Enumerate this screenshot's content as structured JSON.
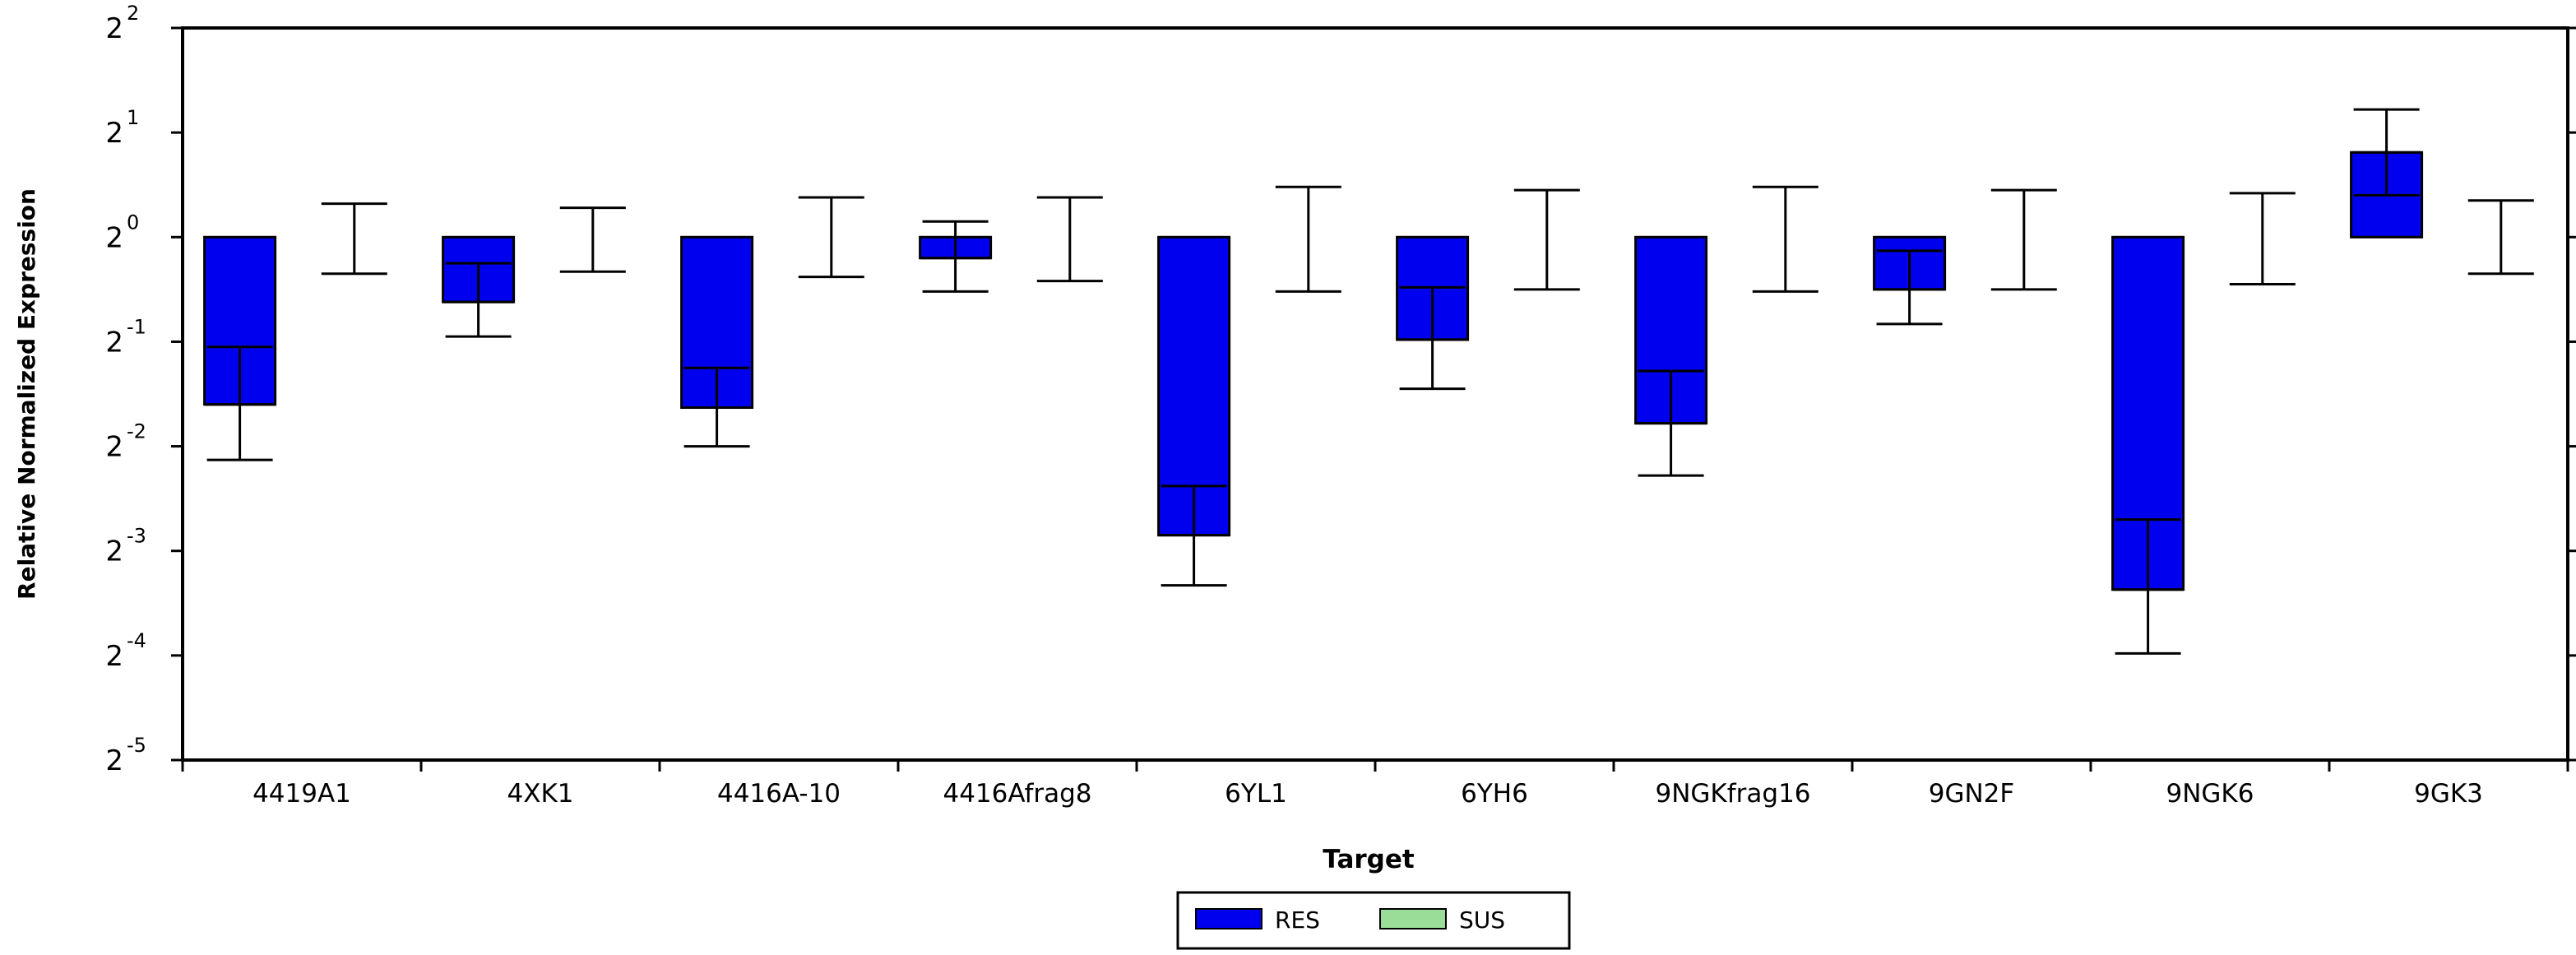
{
  "chart_data": {
    "type": "bar",
    "xlabel": "Target",
    "ylabel": "Relative Normalized Expression",
    "y_scale": "log2",
    "ylim": [
      -5,
      2
    ],
    "y_ticks": [
      {
        "base": "2",
        "exp": "2",
        "value": 2
      },
      {
        "base": "2",
        "exp": "1",
        "value": 1
      },
      {
        "base": "2",
        "exp": "0",
        "value": 0
      },
      {
        "base": "2",
        "exp": "-1",
        "value": -1
      },
      {
        "base": "2",
        "exp": "-2",
        "value": -2
      },
      {
        "base": "2",
        "exp": "-3",
        "value": -3
      },
      {
        "base": "2",
        "exp": "-4",
        "value": -4
      },
      {
        "base": "2",
        "exp": "-5",
        "value": -5
      }
    ],
    "categories": [
      "4419A1",
      "4XK1",
      "4416A-10",
      "4416Afrag8",
      "6YL1",
      "6YH6",
      "9NGKfrag16",
      "9GN2F",
      "9NGK6",
      "9GK3"
    ],
    "series": [
      {
        "name": "RES",
        "color": "#0000ee",
        "values_log2": [
          -1.6,
          -0.62,
          -1.63,
          -0.2,
          -2.85,
          -0.98,
          -1.78,
          -0.5,
          -3.37,
          0.81
        ],
        "error_low_log2": [
          -2.13,
          -0.95,
          -2.0,
          -0.52,
          -3.33,
          -1.45,
          -2.28,
          -0.83,
          -3.98,
          0.4
        ],
        "error_high_log2": [
          -1.05,
          -0.25,
          -1.25,
          0.15,
          -2.38,
          -0.48,
          -1.28,
          -0.13,
          -2.7,
          1.22
        ]
      },
      {
        "name": "SUS",
        "color": "#99dd99",
        "values_log2": [
          0,
          0,
          0,
          0,
          0,
          0,
          0,
          0,
          0,
          0
        ],
        "error_low_log2": [
          -0.35,
          -0.33,
          -0.38,
          -0.42,
          -0.52,
          -0.5,
          -0.52,
          -0.5,
          -0.45,
          -0.35
        ],
        "error_high_log2": [
          0.32,
          0.28,
          0.38,
          0.38,
          0.48,
          0.45,
          0.48,
          0.45,
          0.42,
          0.35
        ]
      }
    ],
    "legend": {
      "position": "bottom-center",
      "entries": [
        "RES",
        "SUS"
      ]
    },
    "grid": false
  }
}
